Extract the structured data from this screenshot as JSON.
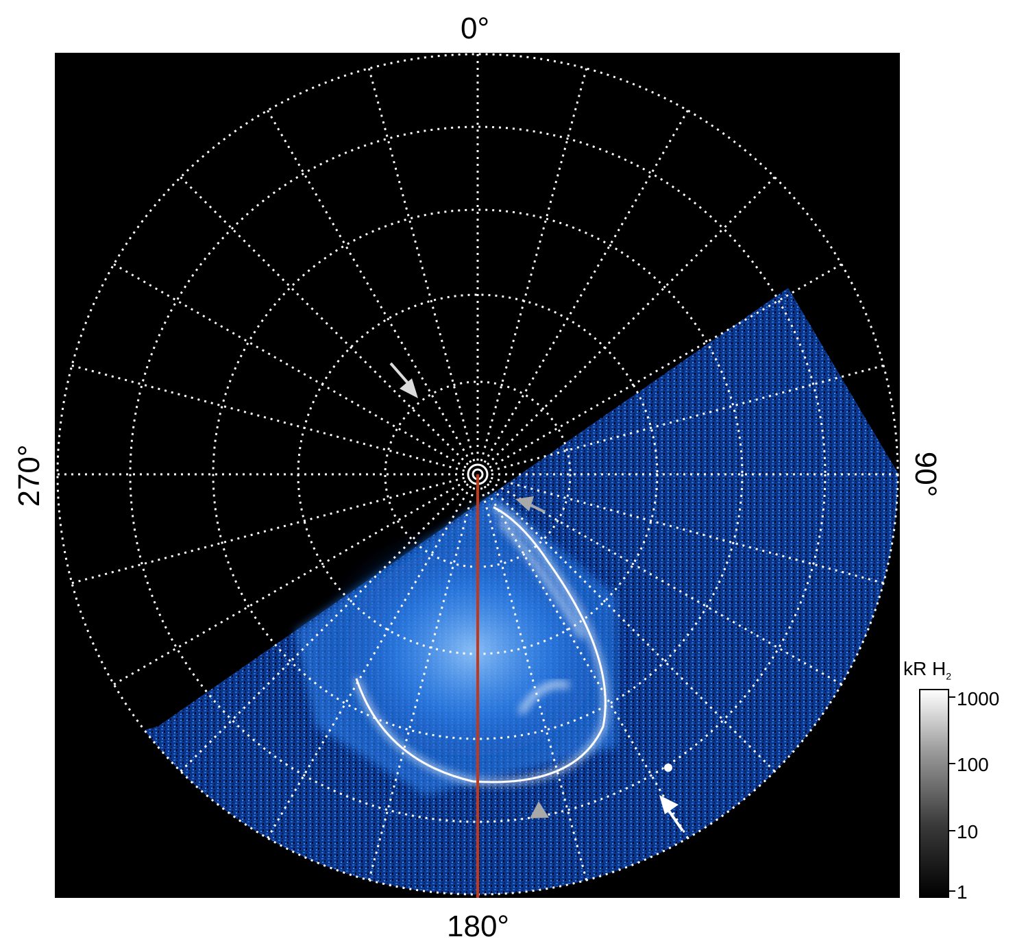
{
  "polar_labels": {
    "top": "0°",
    "bottom": "180°",
    "left": "270°",
    "right": "90°"
  },
  "colorbar": {
    "title": "kR H",
    "title_subscript": "2",
    "ticks": [
      "1000",
      "100",
      "10",
      "1"
    ]
  },
  "colors": {
    "background": "#000000",
    "grid": "#ffffff",
    "meridian_line": "#c0391b",
    "aurora_blue": "#1e6fe0",
    "arrow_white": "#ffffff",
    "arrow_gray": "#a9a9a9"
  }
}
